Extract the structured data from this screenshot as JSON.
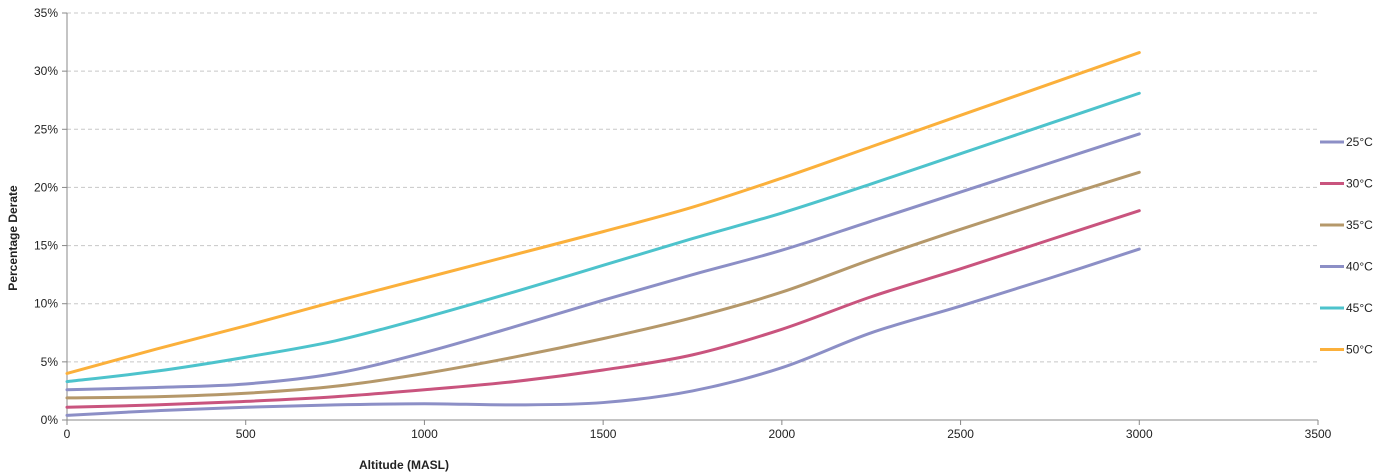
{
  "chart_data": {
    "type": "line",
    "title": "",
    "xlabel": "Altitude (MASL)",
    "ylabel": "Percentage Derate",
    "xlim": [
      0,
      3500
    ],
    "ylim": [
      0,
      35
    ],
    "x_ticks": [
      0,
      500,
      1000,
      1500,
      2000,
      2500,
      3000,
      3500
    ],
    "x_tick_labels": [
      "0",
      "500",
      "1000",
      "1500",
      "2000",
      "2500",
      "3000",
      "3500"
    ],
    "y_ticks": [
      0,
      5,
      10,
      15,
      20,
      25,
      30,
      35
    ],
    "y_tick_labels": [
      "0%",
      "5%",
      "10%",
      "15%",
      "20%",
      "25%",
      "30%",
      "35%"
    ],
    "grid": "horizontal dashed",
    "legend_position": "right",
    "x": [
      0,
      250,
      500,
      750,
      1000,
      1250,
      1500,
      1750,
      2000,
      2250,
      2500,
      2750,
      3000
    ],
    "series": [
      {
        "name": "25°C",
        "color": "#8c8fc6",
        "values": [
          0.4,
          0.8,
          1.1,
          1.3,
          1.4,
          1.3,
          1.5,
          2.5,
          4.5,
          7.5,
          9.8,
          12.2,
          14.7
        ]
      },
      {
        "name": "30°C",
        "color": "#c9547e",
        "values": [
          1.1,
          1.3,
          1.6,
          2.0,
          2.6,
          3.3,
          4.3,
          5.6,
          7.8,
          10.6,
          13.0,
          15.5,
          18.0
        ]
      },
      {
        "name": "35°C",
        "color": "#b5986a",
        "values": [
          1.9,
          2.0,
          2.3,
          2.9,
          4.0,
          5.4,
          7.0,
          8.8,
          11.0,
          13.8,
          16.4,
          18.9,
          21.3
        ]
      },
      {
        "name": "40°C",
        "color": "#8c8fc6",
        "values": [
          2.6,
          2.8,
          3.1,
          4.0,
          5.8,
          8.0,
          10.3,
          12.5,
          14.6,
          17.1,
          19.6,
          22.1,
          24.6
        ]
      },
      {
        "name": "45°C",
        "color": "#4dc3cc",
        "values": [
          3.3,
          4.2,
          5.4,
          6.8,
          8.8,
          11.0,
          13.3,
          15.6,
          17.8,
          20.3,
          22.9,
          25.5,
          28.1
        ]
      },
      {
        "name": "50°C",
        "color": "#fbb03b",
        "values": [
          4.0,
          6.1,
          8.1,
          10.2,
          12.2,
          14.2,
          16.2,
          18.3,
          20.8,
          23.5,
          26.2,
          28.9,
          31.6
        ]
      }
    ]
  }
}
